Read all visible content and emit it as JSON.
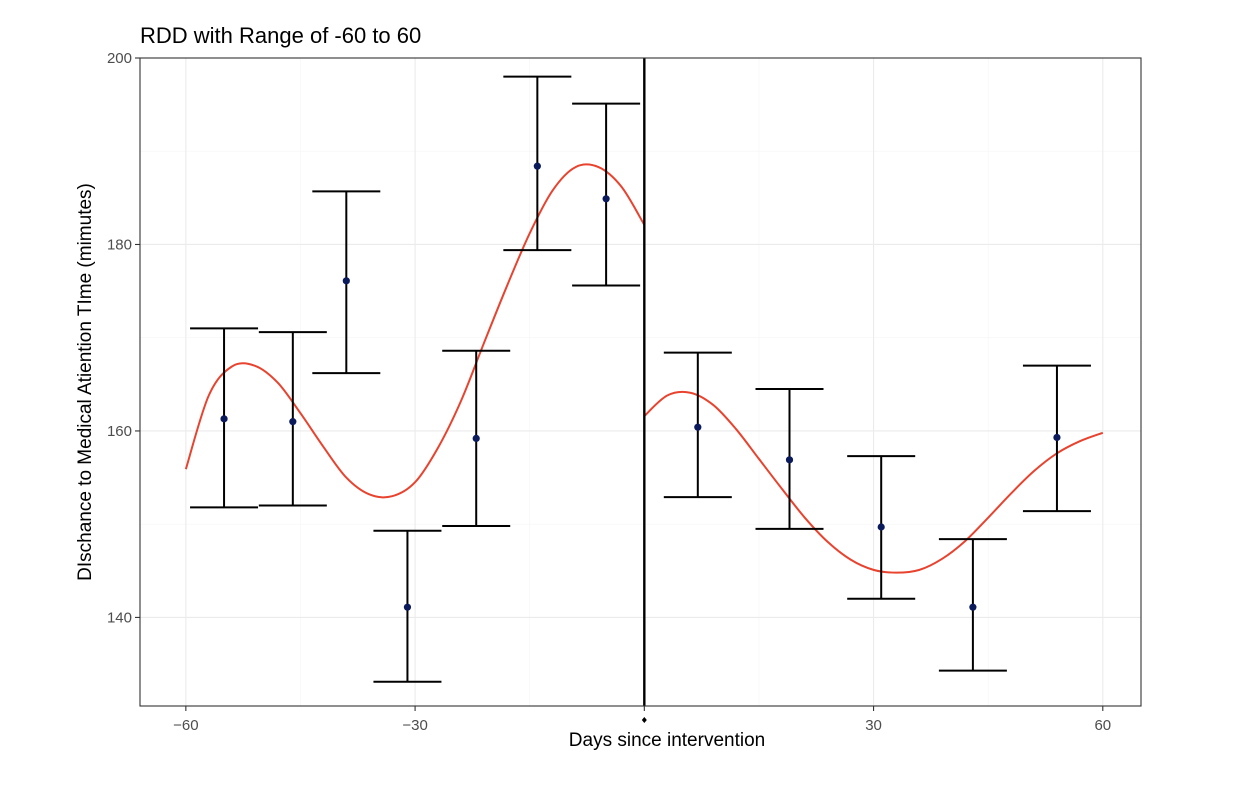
{
  "chart_data": {
    "type": "scatter",
    "title": "RDD with Range of -60 to 60",
    "xlabel": "Days since intervention",
    "ylabel": "DIschance to Medical Atiention TIme (mimutes)",
    "xlim": [
      -66,
      65
    ],
    "ylim": [
      130.5,
      200
    ],
    "x_ticks": [
      -60,
      -30,
      0,
      30,
      60
    ],
    "x_tick_labels": [
      "−60",
      "−30",
      "",
      "30",
      "60"
    ],
    "y_ticks": [
      140,
      160,
      180,
      200
    ],
    "y_tick_labels": [
      "140",
      "160",
      "180",
      "200"
    ],
    "grid": true,
    "cutoff_x": 0,
    "points": [
      {
        "x": -55,
        "y": 161.3,
        "lower": 151.8,
        "upper": 171.0
      },
      {
        "x": -46,
        "y": 161.0,
        "lower": 152.0,
        "upper": 170.6
      },
      {
        "x": -39,
        "y": 176.1,
        "lower": 166.2,
        "upper": 185.7
      },
      {
        "x": -31,
        "y": 141.1,
        "lower": 133.1,
        "upper": 149.3
      },
      {
        "x": -22,
        "y": 159.2,
        "lower": 149.8,
        "upper": 168.6
      },
      {
        "x": -14,
        "y": 188.4,
        "lower": 179.4,
        "upper": 198.0
      },
      {
        "x": -5,
        "y": 184.9,
        "lower": 175.6,
        "upper": 195.1
      },
      {
        "x": 7,
        "y": 160.4,
        "lower": 152.9,
        "upper": 168.4
      },
      {
        "x": 19,
        "y": 156.9,
        "lower": 149.5,
        "upper": 164.5
      },
      {
        "x": 31,
        "y": 149.7,
        "lower": 142.0,
        "upper": 157.3
      },
      {
        "x": 43,
        "y": 141.1,
        "lower": 134.3,
        "upper": 148.4
      },
      {
        "x": 54,
        "y": 159.3,
        "lower": 151.4,
        "upper": 167.0
      }
    ],
    "fit_left": {
      "x": [
        -60,
        -57,
        -54,
        -51,
        -48,
        -45,
        -42,
        -39,
        -36,
        -33,
        -30,
        -27,
        -24,
        -21,
        -18,
        -15,
        -12,
        -9,
        -6,
        -3,
        0
      ],
      "y": [
        155.9,
        163.8,
        166.9,
        167.0,
        165.2,
        161.9,
        158.3,
        155.0,
        153.2,
        153.0,
        154.5,
        158.2,
        163.2,
        169.4,
        175.5,
        181.2,
        185.8,
        188.3,
        188.3,
        186.2,
        182.1
      ]
    },
    "fit_right": {
      "x": [
        0,
        3,
        6,
        9,
        12,
        15,
        18,
        21,
        24,
        27,
        30,
        33,
        36,
        39,
        42,
        45,
        48,
        51,
        54,
        57,
        60
      ],
      "y": [
        161.6,
        163.8,
        164.1,
        162.8,
        160.2,
        157.0,
        153.8,
        150.7,
        148.1,
        146.2,
        145.1,
        144.8,
        145.1,
        146.3,
        148.2,
        150.7,
        153.3,
        155.7,
        157.6,
        158.9,
        159.8
      ]
    }
  }
}
